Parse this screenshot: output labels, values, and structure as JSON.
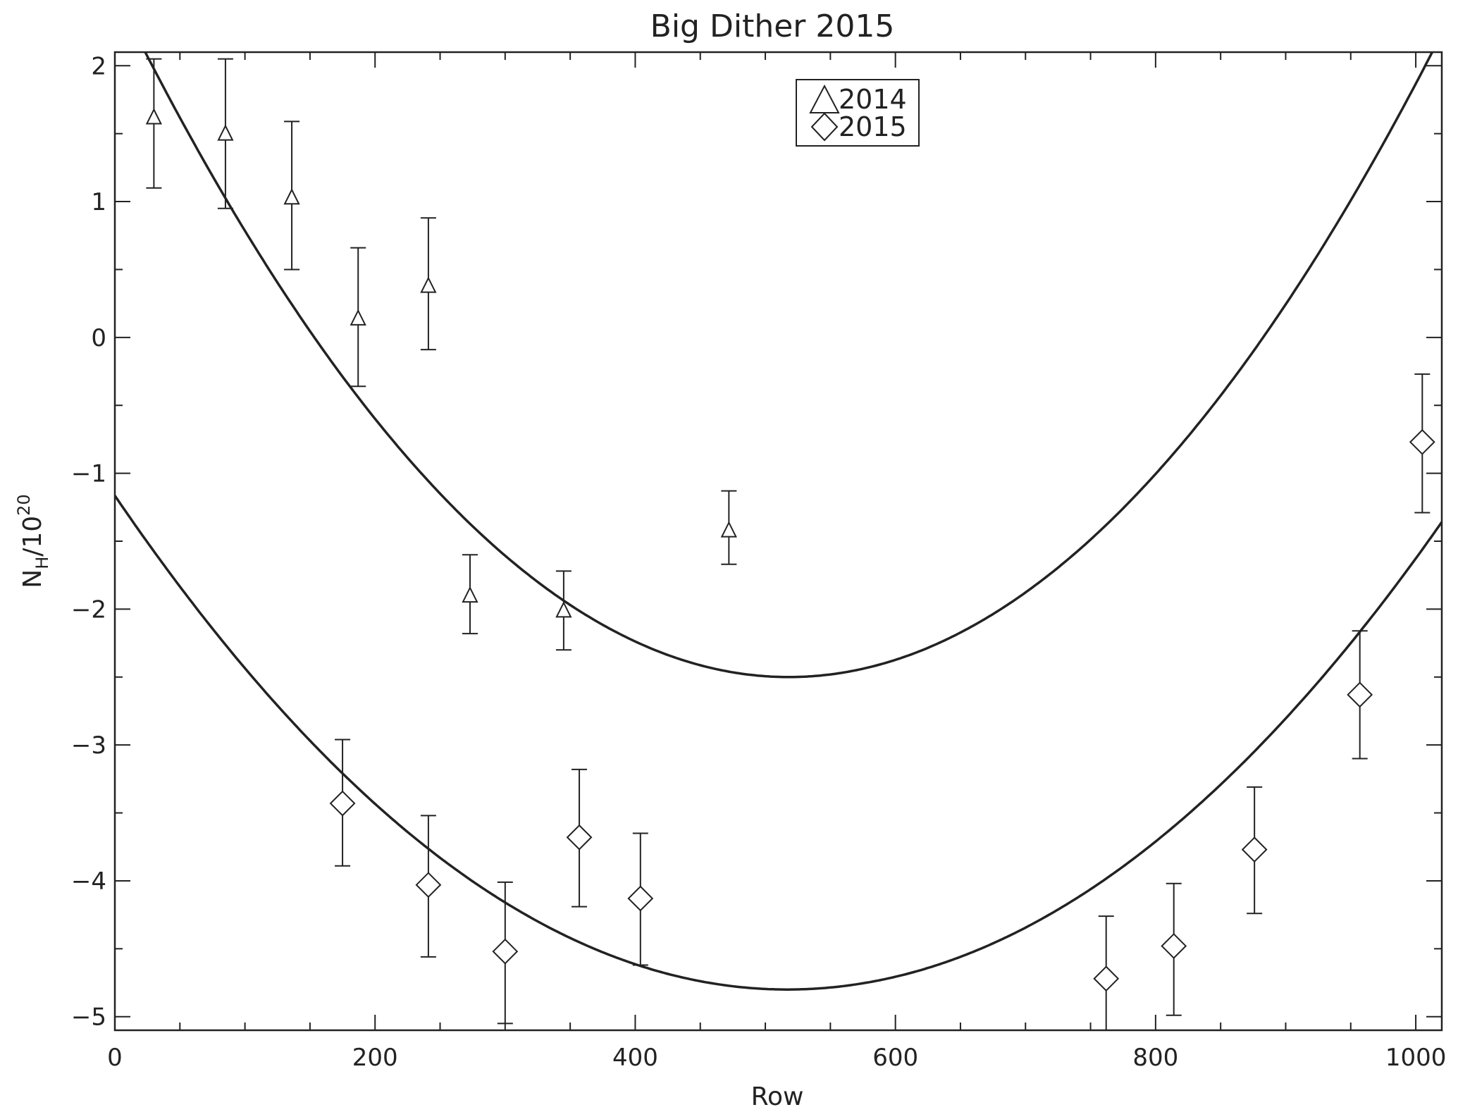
{
  "chart_data": {
    "type": "scatter",
    "title": "Big Dither 2015",
    "xlabel": "Row",
    "ylabel": {
      "base": "N",
      "subscript": "H",
      "middle": "/10",
      "superscript": "20"
    },
    "xlim": [
      0,
      1020
    ],
    "ylim": [
      -5.1,
      2.1
    ],
    "xticks": [
      0,
      200,
      400,
      600,
      800,
      1000
    ],
    "yticks": [
      -5,
      -4,
      -3,
      -2,
      -1,
      0,
      1,
      2
    ],
    "xtick_labels": [
      "0",
      "200",
      "400",
      "600",
      "800",
      "1000"
    ],
    "ytick_labels": [
      "−5",
      "−4",
      "−3",
      "−2",
      "−1",
      "0",
      "1",
      "2"
    ],
    "grid": false,
    "legend_position": "top-center",
    "color": "#222222",
    "series": [
      {
        "name": "2014",
        "marker": "triangle",
        "points": [
          {
            "x": 30,
            "y": 1.62,
            "err_low": 1.1,
            "err_high": 2.05
          },
          {
            "x": 85,
            "y": 1.5,
            "err_low": 0.95,
            "err_high": 2.05
          },
          {
            "x": 136,
            "y": 1.03,
            "err_low": 0.5,
            "err_high": 1.59
          },
          {
            "x": 187,
            "y": 0.14,
            "err_low": -0.36,
            "err_high": 0.66
          },
          {
            "x": 241,
            "y": 0.38,
            "err_low": -0.09,
            "err_high": 0.88
          },
          {
            "x": 273,
            "y": -1.9,
            "err_low": -2.18,
            "err_high": -1.6
          },
          {
            "x": 345,
            "y": -2.01,
            "err_low": -2.3,
            "err_high": -1.72
          },
          {
            "x": 472,
            "y": -1.42,
            "err_low": -1.67,
            "err_high": -1.13
          }
        ],
        "fit": {
          "type": "parabola",
          "vertex_x": 518,
          "vertex_y": -2.5,
          "curvature": 1.88e-05
        }
      },
      {
        "name": "2015",
        "marker": "diamond",
        "points": [
          {
            "x": 175,
            "y": -3.43,
            "err_low": -3.89,
            "err_high": -2.96
          },
          {
            "x": 241,
            "y": -4.03,
            "err_low": -4.56,
            "err_high": -3.52
          },
          {
            "x": 300,
            "y": -4.52,
            "err_low": -5.05,
            "err_high": -4.01
          },
          {
            "x": 357,
            "y": -3.68,
            "err_low": -4.19,
            "err_high": -3.18
          },
          {
            "x": 404,
            "y": -4.13,
            "err_low": -4.62,
            "err_high": -3.65
          },
          {
            "x": 762,
            "y": -4.72,
            "err_low": -5.1,
            "err_high": -4.26
          },
          {
            "x": 814,
            "y": -4.48,
            "err_low": -4.99,
            "err_high": -4.02
          },
          {
            "x": 876,
            "y": -3.77,
            "err_low": -4.24,
            "err_high": -3.31
          },
          {
            "x": 957,
            "y": -2.63,
            "err_low": -3.1,
            "err_high": -2.16
          },
          {
            "x": 1005,
            "y": -0.77,
            "err_low": -1.29,
            "err_high": -0.27
          }
        ],
        "fit": {
          "type": "parabola",
          "vertex_x": 517,
          "vertex_y": -4.8,
          "curvature": 1.36e-05
        }
      }
    ]
  }
}
